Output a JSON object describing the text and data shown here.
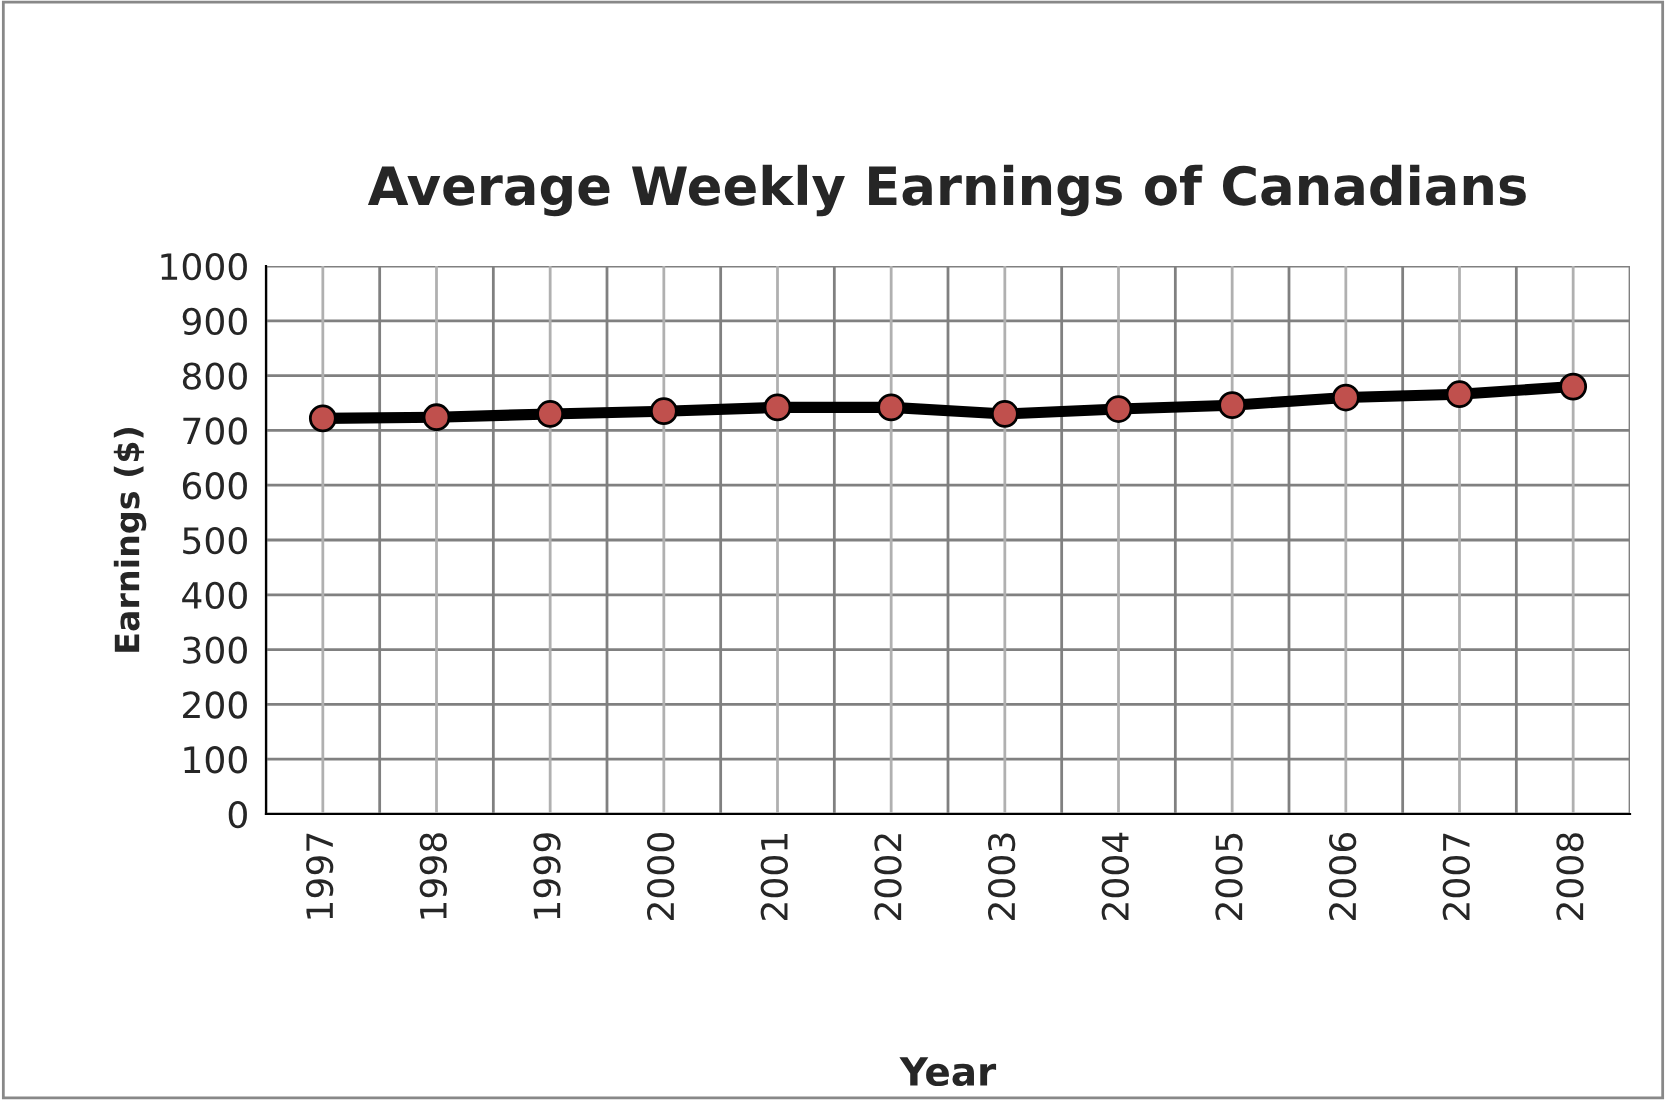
{
  "chart_data": {
    "type": "line",
    "title": "Average Weekly Earnings of Canadians",
    "xlabel": "Year",
    "ylabel": "Earnings ($)",
    "categories": [
      "1997",
      "1998",
      "1999",
      "2000",
      "2001",
      "2002",
      "2003",
      "2004",
      "2005",
      "2006",
      "2007",
      "2008"
    ],
    "series": [
      {
        "color": "#000000",
        "values": [
          722,
          724,
          730,
          735,
          742,
          742,
          730,
          739,
          746,
          760,
          766,
          780
        ]
      }
    ],
    "marker": "circle",
    "line_style": "solid",
    "ylim": [
      0,
      1000
    ],
    "yticks": [
      0,
      100,
      200,
      300,
      400,
      500,
      600,
      700,
      800,
      900,
      1000
    ],
    "grid": true,
    "legend": false
  }
}
